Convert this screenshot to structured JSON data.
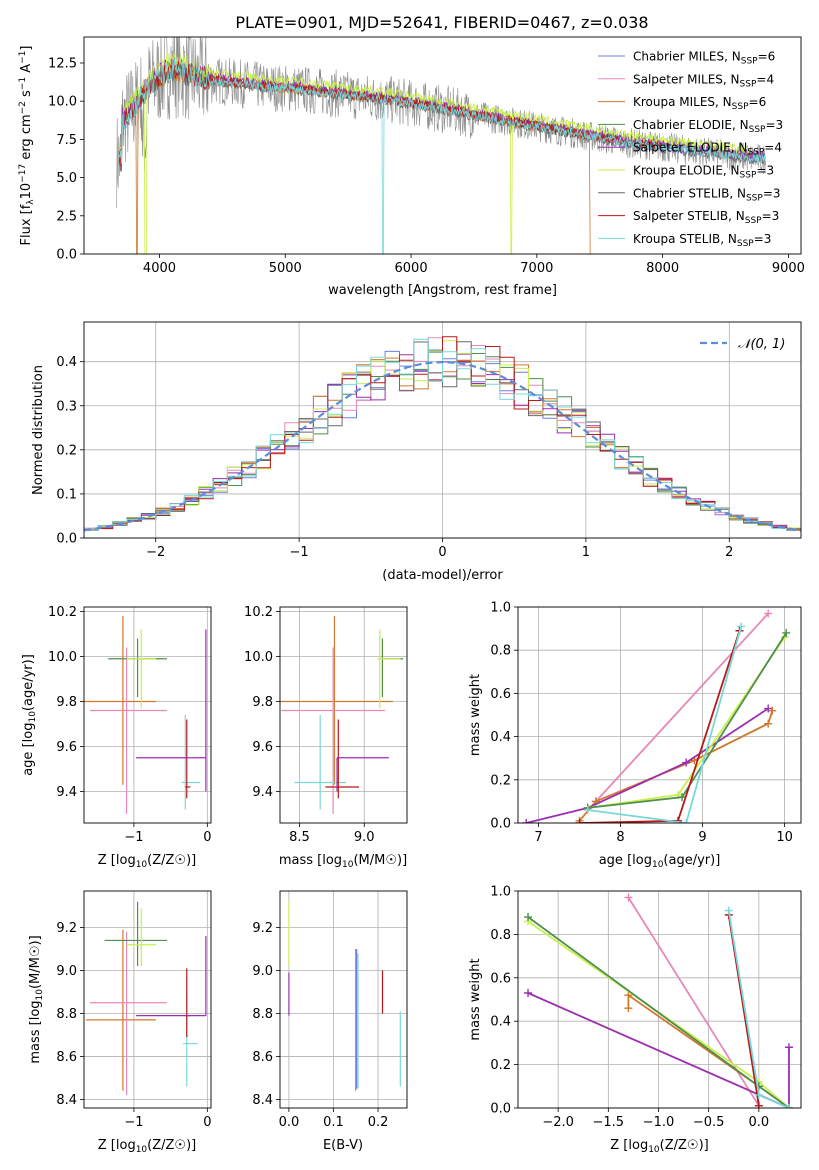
{
  "figure": {
    "title": "PLATE=0901, MJD=52641, FIBERID=0467, z=0.038"
  },
  "colors": {
    "chabrier_miles": "#6f7fe0",
    "salpeter_miles": "#e888b8",
    "kroupa_miles": "#d0782c",
    "chabrier_elodie": "#4e8e4e",
    "salpeter_elodie": "#9b2fb0",
    "kroupa_elodie": "#c8ef4c",
    "chabrier_stelib": "#6a6a6a",
    "salpeter_stelib": "#b81818",
    "kroupa_stelib": "#78d8d8",
    "normal_curve": "#5b8ed8",
    "grid": "#b0b0b0"
  },
  "chart_data": [
    {
      "id": "spectrum",
      "type": "line",
      "xlabel": "wavelength [Angstrom, rest frame]",
      "ylabel": "Flux [f_λ 10^-17 erg cm^-2 s^-1 A^-1]",
      "xlim": [
        3400,
        9100
      ],
      "ylim": [
        0,
        14.2
      ],
      "xticks": [
        4000,
        5000,
        6000,
        7000,
        8000,
        9000
      ],
      "yticks": [
        0.0,
        2.5,
        5.0,
        7.5,
        10.0,
        12.5
      ],
      "grid": false,
      "legend_position": "top-right",
      "legend": [
        "Chabrier MILES, N_SSP=6",
        "Salpeter MILES, N_SSP=4",
        "Kroupa MILES, N_SSP=6",
        "Chabrier ELODIE, N_SSP=3",
        "Salpeter ELODIE, N_SSP=4",
        "Kroupa ELODIE, N_SSP=3",
        "Chabrier STELIB, N_SSP=3",
        "Salpeter STELIB, N_SSP=3",
        "Kroupa STELIB, N_SSP=3"
      ],
      "data_x": [
        3700,
        3800,
        3900,
        4000,
        4100,
        4200,
        4300,
        4500,
        4700,
        4900,
        5100,
        5300,
        5500,
        5700,
        5900,
        6100,
        6300,
        6500,
        6700,
        6900,
        7100,
        7300,
        7500,
        7700,
        7900,
        8100,
        8300,
        8500,
        8700,
        8800
      ],
      "model_y": [
        8.6,
        9.6,
        10.8,
        11.6,
        12.1,
        11.9,
        11.5,
        11.3,
        11.1,
        10.9,
        10.8,
        10.6,
        10.4,
        10.2,
        10.0,
        9.7,
        9.4,
        9.1,
        8.8,
        8.5,
        8.2,
        7.9,
        7.6,
        7.3,
        7.1,
        6.9,
        6.7,
        6.5,
        6.3,
        6.2
      ]
    },
    {
      "id": "residual_hist",
      "type": "line",
      "xlabel": "(data-model)/error",
      "ylabel": "Normed distribution",
      "xlim": [
        -2.5,
        2.5
      ],
      "ylim": [
        0,
        0.49
      ],
      "xticks": [
        -2,
        -1,
        0,
        1,
        2
      ],
      "yticks": [
        0.0,
        0.1,
        0.2,
        0.3,
        0.4
      ],
      "grid": true,
      "legend_position": "top-right",
      "legend": [
        "N(0, 1)"
      ],
      "bin_width": 0.1
    },
    {
      "id": "age_vs_Z",
      "type": "scatter",
      "xlabel": "Z [log10(Z/Z☉)]",
      "ylabel": "age  [log10(age/yr)]",
      "xlim": [
        -1.68,
        0.05
      ],
      "ylim": [
        9.26,
        10.22
      ],
      "xticks": [
        -1,
        0
      ],
      "yticks": [
        9.4,
        9.6,
        9.8,
        10.0,
        10.2
      ],
      "grid": true,
      "points": [
        {
          "x": -1.15,
          "y": 9.8,
          "xerr": [
            0.55,
            0.45
          ],
          "yerr": [
            0.37,
            0.38
          ],
          "color": "kroupa_miles"
        },
        {
          "x": -1.1,
          "y": 9.76,
          "xerr": [
            0.5,
            0.55
          ],
          "yerr": [
            0.46,
            0.28
          ],
          "color": "salpeter_miles"
        },
        {
          "x": -0.95,
          "y": 9.99,
          "xerr": [
            0.4,
            0.4
          ],
          "yerr": [
            0.17,
            0.09
          ],
          "color": "chabrier_elodie"
        },
        {
          "x": -0.9,
          "y": 9.99,
          "xerr": [
            0.2,
            0.2
          ],
          "yerr": [
            0.22,
            0.13
          ],
          "color": "kroupa_elodie"
        },
        {
          "x": -0.3,
          "y": 9.44,
          "xerr": [
            0.05,
            0.2
          ],
          "yerr": [
            0.12,
            0.3
          ],
          "color": "kroupa_stelib"
        },
        {
          "x": -0.28,
          "y": 9.42,
          "xerr": [
            0.02,
            0.05
          ],
          "yerr": [
            0.05,
            0.3
          ],
          "color": "salpeter_stelib"
        },
        {
          "x": -0.02,
          "y": 9.55,
          "xerr": [
            0.95,
            0.0
          ],
          "yerr": [
            0.15,
            0.57
          ],
          "color": "salpeter_elodie"
        }
      ]
    },
    {
      "id": "age_vs_mass",
      "type": "scatter",
      "xlabel": "mass [log10(M/M☉)]",
      "ylabel": "",
      "xlim": [
        8.35,
        9.33
      ],
      "ylim": [
        9.26,
        10.22
      ],
      "xticks": [
        8.5,
        9.0
      ],
      "yticks": [
        9.4,
        9.6,
        9.8,
        10.0,
        10.2
      ],
      "grid": true,
      "points": [
        {
          "x": 8.77,
          "y": 9.8,
          "xerr": [
            0.42,
            0.45
          ],
          "yerr": [
            0.37,
            0.38
          ],
          "color": "kroupa_miles"
        },
        {
          "x": 8.76,
          "y": 9.76,
          "xerr": [
            0.4,
            0.4
          ],
          "yerr": [
            0.46,
            0.28
          ],
          "color": "salpeter_miles"
        },
        {
          "x": 9.14,
          "y": 9.99,
          "xerr": [
            0.0,
            0.16
          ],
          "yerr": [
            0.17,
            0.09
          ],
          "color": "chabrier_elodie"
        },
        {
          "x": 9.12,
          "y": 9.99,
          "xerr": [
            0.02,
            0.16
          ],
          "yerr": [
            0.22,
            0.13
          ],
          "color": "kroupa_elodie"
        },
        {
          "x": 8.66,
          "y": 9.44,
          "xerr": [
            0.2,
            0.2
          ],
          "yerr": [
            0.12,
            0.3
          ],
          "color": "kroupa_stelib"
        },
        {
          "x": 8.8,
          "y": 9.42,
          "xerr": [
            0.1,
            0.16
          ],
          "yerr": [
            0.05,
            0.3
          ],
          "color": "salpeter_stelib"
        },
        {
          "x": 8.79,
          "y": 9.55,
          "xerr": [
            0.0,
            0.4
          ],
          "yerr": [
            0.15,
            0.0
          ],
          "color": "salpeter_elodie"
        }
      ]
    },
    {
      "id": "massweight_vs_age",
      "type": "line",
      "xlabel": "age  [log10(age/yr)]",
      "ylabel": "mass weight",
      "xlim": [
        6.75,
        10.2
      ],
      "ylim": [
        0,
        1
      ],
      "xticks": [
        7,
        8,
        9,
        10
      ],
      "yticks": [
        0.0,
        0.2,
        0.4,
        0.6,
        0.8,
        1.0
      ],
      "grid": true,
      "series": [
        {
          "color": "salpeter_miles",
          "x": [
            7.7,
            9.8
          ],
          "y": [
            0.1,
            0.97
          ]
        },
        {
          "color": "kroupa_miles",
          "x": [
            7.5,
            7.7,
            8.9,
            9.8,
            9.85
          ],
          "y": [
            0.01,
            0.1,
            0.29,
            0.46,
            0.52
          ]
        },
        {
          "color": "salpeter_elodie",
          "x": [
            6.85,
            7.6,
            8.8,
            9.8
          ],
          "y": [
            0.0,
            0.07,
            0.28,
            0.53
          ]
        },
        {
          "color": "kroupa_elodie",
          "x": [
            7.6,
            8.7,
            10.0
          ],
          "y": [
            0.07,
            0.13,
            0.86
          ]
        },
        {
          "color": "chabrier_elodie",
          "x": [
            7.6,
            8.75,
            10.02
          ],
          "y": [
            0.07,
            0.12,
            0.88
          ]
        },
        {
          "color": "salpeter_stelib",
          "x": [
            7.5,
            8.7,
            9.45
          ],
          "y": [
            0.0,
            0.01,
            0.89
          ]
        },
        {
          "color": "kroupa_stelib",
          "x": [
            7.6,
            8.8,
            9.47
          ],
          "y": [
            0.06,
            0.0,
            0.91
          ]
        }
      ]
    },
    {
      "id": "mass_vs_Z",
      "type": "scatter",
      "xlabel": "Z [log10(Z/Z☉)]",
      "ylabel": "mass [log10(M/M☉)]",
      "xlim": [
        -1.68,
        0.05
      ],
      "ylim": [
        8.36,
        9.37
      ],
      "xticks": [
        -1,
        0
      ],
      "yticks": [
        8.4,
        8.6,
        8.8,
        9.0,
        9.2
      ],
      "grid": true,
      "points": [
        {
          "x": -1.15,
          "y": 8.77,
          "xerr": [
            0.5,
            0.45
          ],
          "yerr": [
            0.33,
            0.42
          ],
          "color": "kroupa_miles"
        },
        {
          "x": -1.1,
          "y": 8.85,
          "xerr": [
            0.5,
            0.55
          ],
          "yerr": [
            0.43,
            0.33
          ],
          "color": "salpeter_miles"
        },
        {
          "x": -0.95,
          "y": 9.14,
          "xerr": [
            0.45,
            0.4
          ],
          "yerr": [
            0.12,
            0.18
          ],
          "color": "chabrier_elodie"
        },
        {
          "x": -0.9,
          "y": 9.12,
          "xerr": [
            0.2,
            0.2
          ],
          "yerr": [
            0.1,
            0.17
          ],
          "color": "kroupa_elodie"
        },
        {
          "x": -0.28,
          "y": 8.66,
          "xerr": [
            0.05,
            0.15
          ],
          "yerr": [
            0.2,
            0.23
          ],
          "color": "kroupa_stelib"
        },
        {
          "x": -0.28,
          "y": 8.79,
          "xerr": [
            0.02,
            0.05
          ],
          "yerr": [
            0.1,
            0.22
          ],
          "color": "salpeter_stelib"
        },
        {
          "x": -0.02,
          "y": 8.79,
          "xerr": [
            0.95,
            0.0
          ],
          "yerr": [
            0.0,
            0.37
          ],
          "color": "salpeter_elodie"
        }
      ]
    },
    {
      "id": "mass_vs_ebv",
      "type": "scatter",
      "xlabel": "E(B-V)",
      "ylabel": "",
      "xlim": [
        -0.02,
        0.265
      ],
      "ylim": [
        8.36,
        9.37
      ],
      "xticks": [
        0.0,
        0.1,
        0.2
      ],
      "yticks": [
        8.4,
        8.6,
        8.8,
        9.0,
        9.2
      ],
      "grid": true,
      "points": [
        {
          "x": 0.0,
          "y": 9.12,
          "xerr": [
            0,
            0
          ],
          "yerr": [
            0.1,
            0.2
          ],
          "color": "kroupa_elodie"
        },
        {
          "x": 0.0,
          "y": 8.79,
          "xerr": [
            0,
            0
          ],
          "yerr": [
            0.0,
            0.2
          ],
          "color": "salpeter_elodie"
        },
        {
          "x": 0.15,
          "y": 8.77,
          "xerr": [
            0,
            0
          ],
          "yerr": [
            0.33,
            0.33
          ],
          "color": "kroupa_miles"
        },
        {
          "x": 0.152,
          "y": 8.75,
          "xerr": [
            0,
            0
          ],
          "yerr": [
            0.3,
            0.35
          ],
          "color": "chabrier_miles"
        },
        {
          "x": 0.155,
          "y": 8.75,
          "xerr": [
            0,
            0
          ],
          "yerr": [
            0.3,
            0.33
          ],
          "color": "kroupa_stelib"
        },
        {
          "x": 0.21,
          "y": 8.8,
          "xerr": [
            0,
            0
          ],
          "yerr": [
            0.0,
            0.2
          ],
          "color": "salpeter_stelib"
        },
        {
          "x": 0.25,
          "y": 8.66,
          "xerr": [
            0,
            0
          ],
          "yerr": [
            0.2,
            0.15
          ],
          "color": "kroupa_stelib"
        }
      ]
    },
    {
      "id": "massweight_vs_Z",
      "type": "line",
      "xlabel": "Z [log10(Z/Z☉)]",
      "ylabel": "mass weight",
      "xlim": [
        -2.4,
        0.42
      ],
      "ylim": [
        0,
        1
      ],
      "xticks": [
        -2.0,
        -1.5,
        -1.0,
        -0.5,
        0.0
      ],
      "yticks": [
        0.0,
        0.2,
        0.4,
        0.6,
        0.8,
        1.0
      ],
      "grid": true,
      "series": [
        {
          "color": "salpeter_miles",
          "x": [
            -1.3,
            0.0
          ],
          "y": [
            0.97,
            0.01
          ]
        },
        {
          "color": "kroupa_miles",
          "x": [
            -1.3,
            -1.3,
            0.0
          ],
          "y": [
            0.46,
            0.52,
            0.1
          ]
        },
        {
          "color": "salpeter_elodie",
          "x": [
            -2.3,
            0.3,
            0.3
          ],
          "y": [
            0.53,
            0.0,
            0.28
          ]
        },
        {
          "color": "kroupa_elodie",
          "x": [
            -2.3,
            0.0,
            0.3
          ],
          "y": [
            0.86,
            0.12,
            0.0
          ]
        },
        {
          "color": "chabrier_elodie",
          "x": [
            -2.3,
            0.0,
            0.3
          ],
          "y": [
            0.88,
            0.1,
            0.0
          ]
        },
        {
          "color": "salpeter_stelib",
          "x": [
            -0.3,
            0.0
          ],
          "y": [
            0.89,
            0.01
          ]
        },
        {
          "color": "kroupa_stelib",
          "x": [
            -0.3,
            0.0,
            0.3
          ],
          "y": [
            0.91,
            0.06,
            0.0
          ]
        }
      ]
    }
  ]
}
